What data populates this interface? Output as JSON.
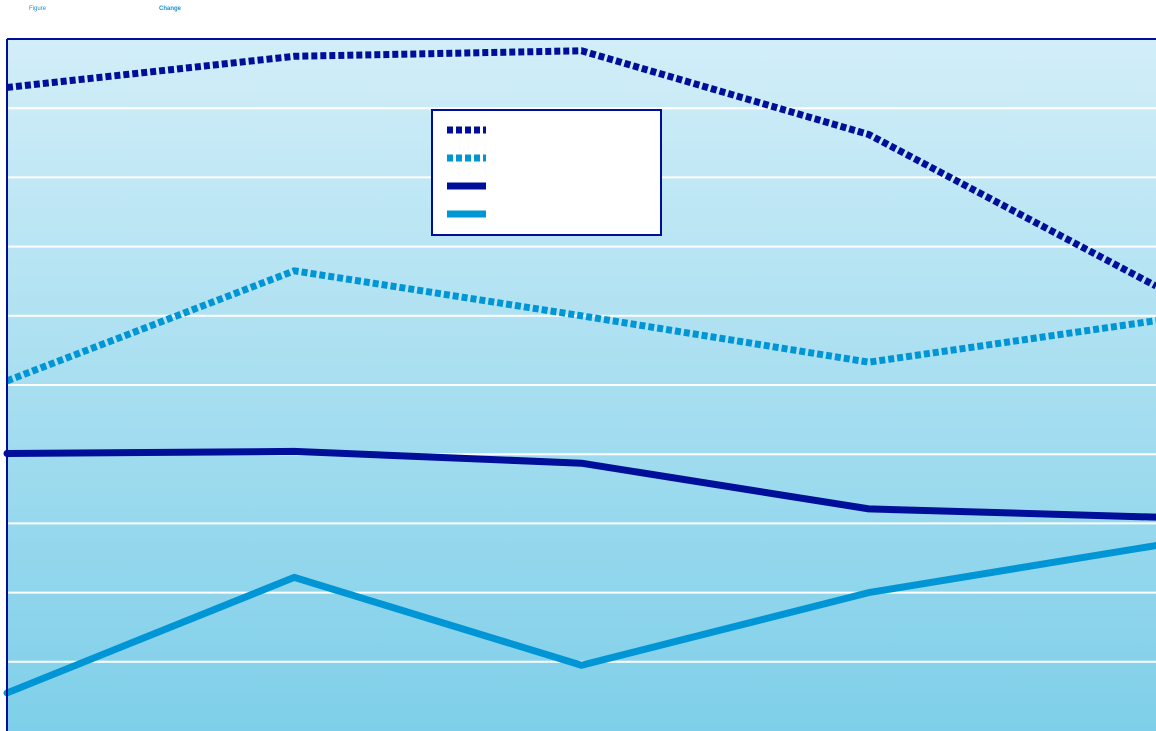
{
  "header": {
    "figure_label": "Figure",
    "change_label": "Change"
  },
  "colors": {
    "dark_blue": "#000f99",
    "light_blue": "#0096d6",
    "grid": "#ffffff",
    "legend_border": "#000f99",
    "bg_top": "#d2eef8",
    "bg_bottom": "#7ecfe9"
  },
  "chart_data": {
    "type": "line",
    "title": "",
    "xlabel": "",
    "ylabel": "",
    "x": [
      0,
      1,
      2,
      3,
      4
    ],
    "ylim": [
      0,
      100
    ],
    "grid": true,
    "legend_position": "top-center",
    "series": [
      {
        "style": "dotted",
        "color": "#000f99",
        "values": [
          93.0,
          97.5,
          98.3,
          86.2,
          64.3
        ]
      },
      {
        "style": "dotted",
        "color": "#0096d6",
        "values": [
          50.6,
          66.5,
          60.0,
          53.3,
          59.3
        ]
      },
      {
        "style": "solid",
        "color": "#000f99",
        "values": [
          40.1,
          40.4,
          38.7,
          32.1,
          30.9
        ]
      },
      {
        "style": "solid",
        "color": "#0096d6",
        "values": [
          5.5,
          22.2,
          9.5,
          20.0,
          26.8
        ]
      }
    ]
  }
}
